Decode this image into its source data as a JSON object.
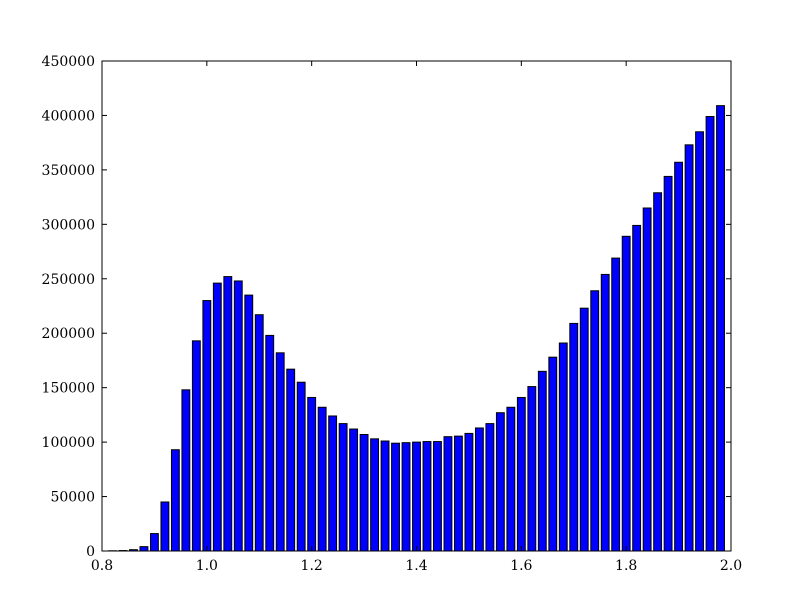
{
  "chart_data": {
    "type": "bar",
    "title": "",
    "xlabel": "",
    "ylabel": "",
    "xlim": [
      0.8,
      2.0
    ],
    "ylim": [
      0,
      450000
    ],
    "grid": false,
    "bar_width": 0.015,
    "bar_color": "#0000ff",
    "edge_color": "#000000",
    "x_ticks": [
      0.8,
      1.0,
      1.2,
      1.4,
      1.6,
      1.8,
      2.0
    ],
    "x_tick_labels": [
      "0.8",
      "1.0",
      "1.2",
      "1.4",
      "1.6",
      "1.8",
      "2.0"
    ],
    "y_ticks": [
      0,
      50000,
      100000,
      150000,
      200000,
      250000,
      300000,
      350000,
      400000,
      450000
    ],
    "y_tick_labels": [
      "0",
      "50000",
      "100000",
      "150000",
      "200000",
      "250000",
      "300000",
      "350000",
      "400000",
      "450000"
    ],
    "x": [
      0.82,
      0.84,
      0.86,
      0.88,
      0.9,
      0.92,
      0.94,
      0.96,
      0.98,
      1.0,
      1.02,
      1.04,
      1.06,
      1.08,
      1.1,
      1.12,
      1.14,
      1.16,
      1.18,
      1.2,
      1.22,
      1.24,
      1.26,
      1.28,
      1.3,
      1.32,
      1.34,
      1.36,
      1.38,
      1.4,
      1.42,
      1.44,
      1.46,
      1.48,
      1.5,
      1.52,
      1.54,
      1.56,
      1.58,
      1.6,
      1.62,
      1.64,
      1.66,
      1.68,
      1.7,
      1.72,
      1.74,
      1.76,
      1.78,
      1.8,
      1.82,
      1.84,
      1.86,
      1.88,
      1.9,
      1.92,
      1.94,
      1.96,
      1.98
    ],
    "values": [
      200,
      400,
      1200,
      4000,
      16000,
      45000,
      93000,
      148000,
      193000,
      230000,
      246000,
      252000,
      248000,
      235000,
      217000,
      198000,
      182000,
      167000,
      155000,
      141000,
      132000,
      124000,
      117000,
      112000,
      107000,
      103000,
      101000,
      99000,
      99500,
      100000,
      100500,
      100500,
      105000,
      105500,
      108000,
      113000,
      117000,
      127000,
      132000,
      141000,
      151000,
      165000,
      178000,
      191000,
      209000,
      223000,
      239000,
      254000,
      269000,
      289000,
      299000,
      315000,
      329000,
      344000,
      357000,
      373000,
      385000,
      399000,
      409000
    ]
  }
}
